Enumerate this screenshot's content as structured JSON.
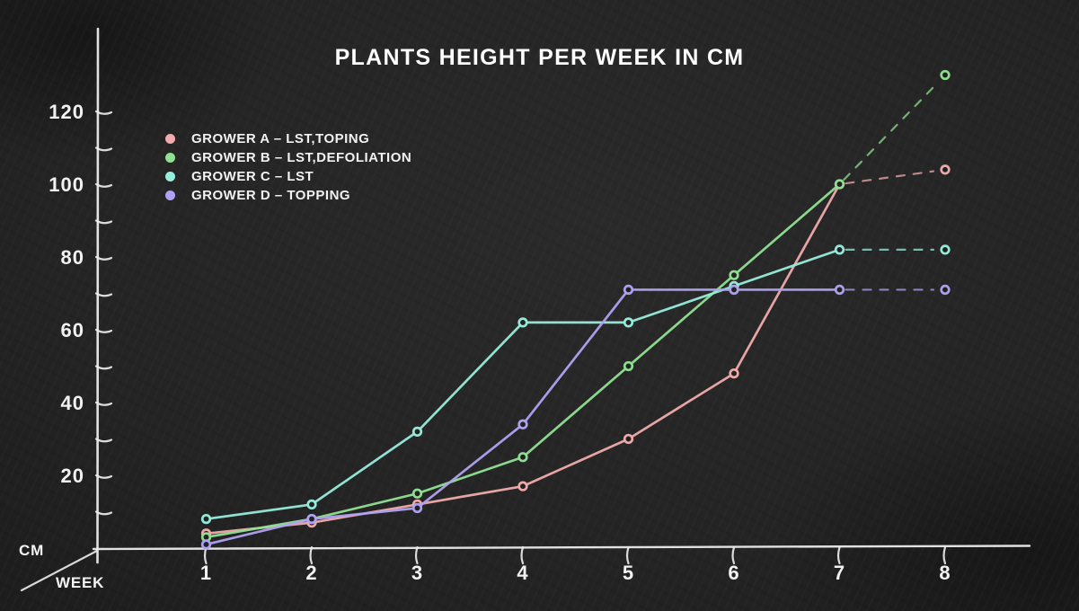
{
  "title": "PLANTS HEIGHT PER WEEK IN CM",
  "colors": {
    "background": "#242424",
    "axis": "#ececec",
    "text": "#f2f2f2",
    "grower_a": "#f0acab",
    "grower_b": "#90e093",
    "grower_c": "#97ecdc",
    "grower_d": "#b0a2f2"
  },
  "axes": {
    "y_unit": "CM",
    "x_label": "WEEK",
    "y_labeled_ticks": [
      20,
      40,
      60,
      80,
      100,
      120
    ],
    "y_minor_ticks": [
      10,
      30,
      50,
      70,
      90,
      110
    ],
    "x_ticks": [
      1,
      2,
      3,
      4,
      5,
      6,
      7,
      8
    ]
  },
  "legend": [
    {
      "id": "grower-a",
      "label": "GROWER A – LST,TOPING",
      "color": "#f0acab"
    },
    {
      "id": "grower-b",
      "label": "GROWER B – LST,DEFOLIATION",
      "color": "#90e093"
    },
    {
      "id": "grower-c",
      "label": "GROWER C – LST",
      "color": "#97ecdc"
    },
    {
      "id": "grower-d",
      "label": "GROWER D – TOPPING",
      "color": "#b0a2f2"
    }
  ],
  "chart_data": {
    "type": "line",
    "title": "PLANTS HEIGHT PER WEEK IN CM",
    "xlabel": "WEEK",
    "ylabel": "CM",
    "x": [
      1,
      2,
      3,
      4,
      5,
      6,
      7,
      8
    ],
    "xlim": [
      0,
      8.8
    ],
    "ylim": [
      0,
      135
    ],
    "grid": false,
    "legend_position": "top-left",
    "style": "chalkboard, hand-drawn, donut markers, dashed projection after week 7",
    "series": [
      {
        "name": "GROWER A – LST,TOPING",
        "color": "#f0acab",
        "values": [
          4,
          7,
          12,
          17,
          30,
          48,
          100,
          104
        ],
        "dashed_from_x": 7
      },
      {
        "name": "GROWER B – LST,DEFOLIATION",
        "color": "#90e093",
        "values": [
          3,
          8,
          15,
          25,
          50,
          75,
          100,
          130
        ],
        "dashed_from_x": 7
      },
      {
        "name": "GROWER C – LST",
        "color": "#97ecdc",
        "values": [
          8,
          12,
          32,
          62,
          62,
          72,
          82,
          82
        ],
        "dashed_from_x": 7
      },
      {
        "name": "GROWER D – TOPPING",
        "color": "#b0a2f2",
        "values": [
          1,
          8,
          11,
          34,
          71,
          71,
          71,
          71
        ],
        "dashed_from_x": 7
      }
    ]
  }
}
